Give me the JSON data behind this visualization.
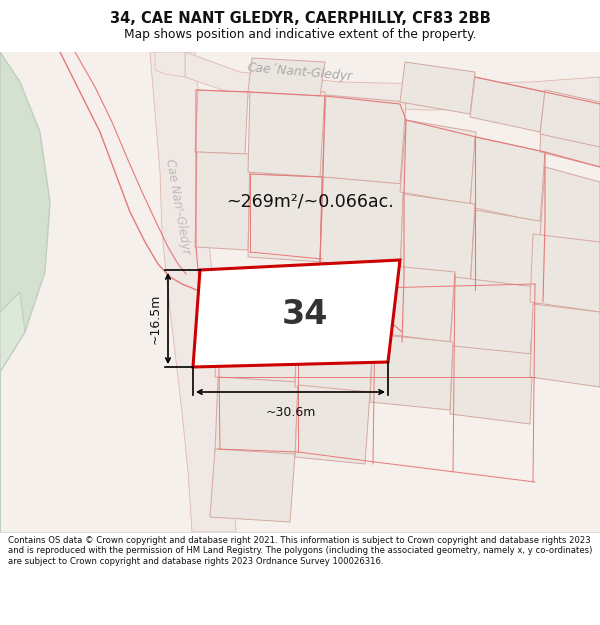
{
  "title": "34, CAE NANT GLEDYR, CAERPHILLY, CF83 2BB",
  "subtitle": "Map shows position and indicative extent of the property.",
  "footer": "Contains OS data © Crown copyright and database right 2021. This information is subject to Crown copyright and database rights 2023 and is reproduced with the permission of HM Land Registry. The polygons (including the associated geometry, namely x, y co-ordinates) are subject to Crown copyright and database rights 2023 Ordnance Survey 100026316.",
  "area_text": "~269m²/~0.066ac.",
  "plot_number": "34",
  "dim_width": "~30.6m",
  "dim_height": "~16.5m",
  "map_bg": "#f5f0eb",
  "green_color": "#d4e0d0",
  "green_edge": "#c0cec0",
  "building_fill": "#e8e2dc",
  "building_edge": "#d4a0a0",
  "road_fill": "#f0e8e4",
  "road_edge": "#e0b8b0",
  "plot_fill": "#ffffff",
  "plot_edge": "#cc0000",
  "parcel_fill": "#ece6e0",
  "parcel_edge": "#d4a8a0",
  "street_label": "Cae´Nant-Gledyr",
  "street_label2": "Cae Nant´-Gledyr"
}
